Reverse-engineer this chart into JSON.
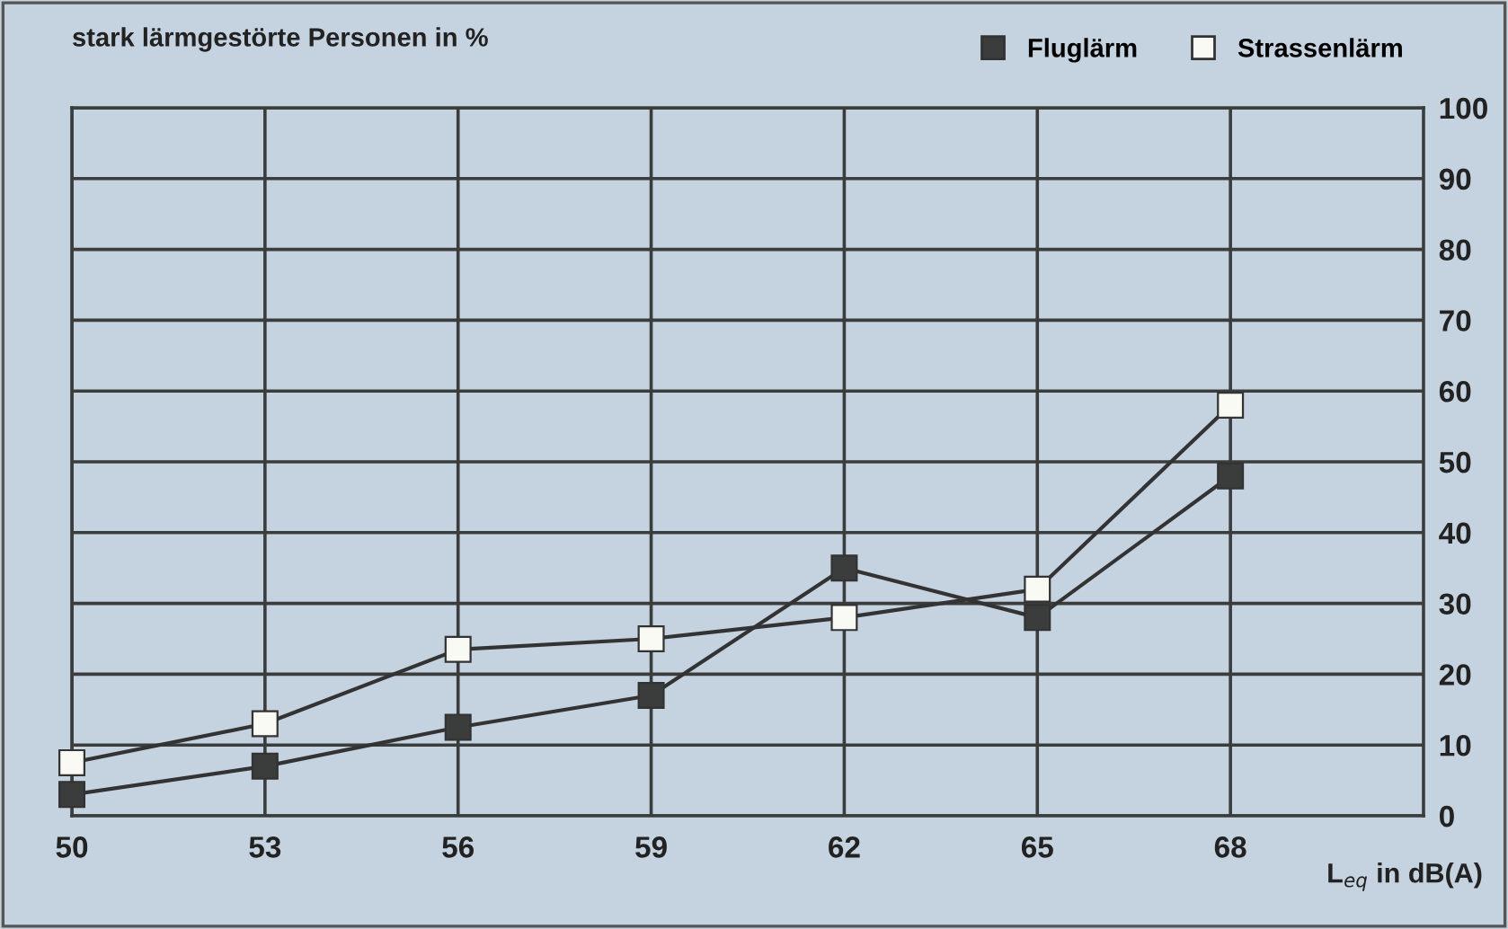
{
  "chart_data": {
    "type": "line",
    "title": "stark lärmgestörte Personen in %",
    "xlabel": "L$_{eq}$ in dB(A)",
    "x": [
      50,
      53,
      56,
      59,
      62,
      65,
      68
    ],
    "series": [
      {
        "name": "Fluglärm",
        "color": "#3a3d3c",
        "values": [
          3,
          7,
          12.5,
          17,
          35,
          28,
          48
        ]
      },
      {
        "name": "Strassenlärm",
        "color": "#fafaf5",
        "values": [
          7.5,
          13,
          23.5,
          25,
          28,
          32,
          58
        ]
      }
    ],
    "xlim": [
      50,
      71
    ],
    "xticks": [
      50,
      53,
      56,
      59,
      62,
      65,
      68
    ],
    "ylim": [
      0,
      100
    ],
    "yticks": [
      0,
      10,
      20,
      30,
      40,
      50,
      60,
      70,
      80,
      90,
      100
    ],
    "grid": true,
    "legend": "top right",
    "marker": "square",
    "line_style": "solid"
  }
}
